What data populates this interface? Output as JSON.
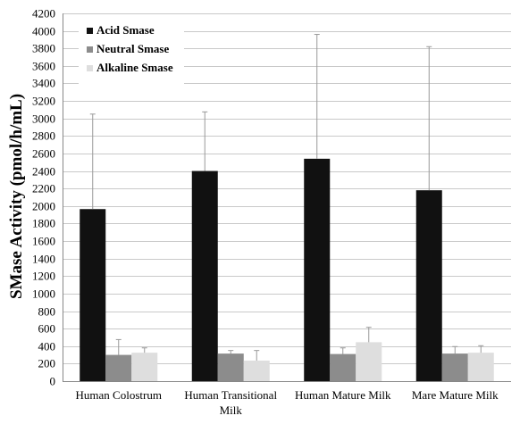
{
  "chart_data": {
    "type": "bar",
    "title": "",
    "xlabel": "",
    "ylabel": "SMase Activity (pmol/h/mL)",
    "ylim": [
      0,
      4200
    ],
    "ytick_step": 200,
    "grid": true,
    "legend_position": "top-left",
    "categories": [
      [
        "Human Colostrum"
      ],
      [
        "Human Transitional",
        "Milk"
      ],
      [
        "Human Mature Milk"
      ],
      [
        "Mare Mature Milk"
      ]
    ],
    "series": [
      {
        "name": "Acid Smase",
        "color": "#111111",
        "values": [
          1965,
          2400,
          2540,
          2180
        ],
        "errors": [
          1085,
          675,
          1420,
          1640
        ]
      },
      {
        "name": "Neutral Smase",
        "color": "#8c8c8c",
        "values": [
          300,
          315,
          310,
          315
        ],
        "errors": [
          175,
          35,
          70,
          80
        ]
      },
      {
        "name": "Alkaline Smase",
        "color": "#dedede",
        "values": [
          325,
          235,
          445,
          325
        ],
        "errors": [
          55,
          115,
          170,
          80
        ]
      }
    ]
  }
}
